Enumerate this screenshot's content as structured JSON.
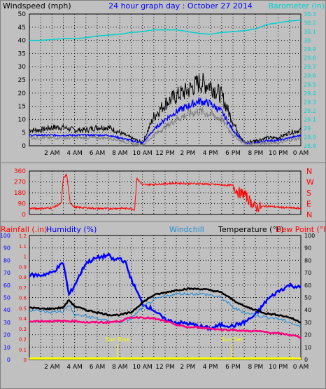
{
  "chart_data": [
    {
      "type": "line",
      "title": "24 hour graph day : October 27 2014",
      "ylabel": "Windspeed (mph)",
      "y2label": "Barometer (in)",
      "ylim": [
        0,
        50
      ],
      "y2lim": [
        28.8,
        30.3
      ],
      "yticks": [
        "0",
        "5",
        "10",
        "15",
        "20",
        "25",
        "30",
        "35",
        "40",
        "45",
        "50"
      ],
      "y2ticks": [
        "28.8",
        "28.9",
        "29",
        "29.1",
        "29.2",
        "29.3",
        "29.4",
        "29.5",
        "29.6",
        "29.7",
        "29.8",
        "29.9",
        "30",
        "30.1",
        "30.2",
        "30.3"
      ],
      "xticks": [
        "2 AM",
        "4 AM",
        "6 AM",
        "8 AM",
        "10 AM",
        "12 PM",
        "2 PM",
        "4 PM",
        "6 PM",
        "8 PM",
        "10 PM",
        "0 AM"
      ],
      "grid": true,
      "series": [
        {
          "name": "Wind gust",
          "color": "#000000",
          "x": [
            0,
            1,
            2,
            3,
            4,
            5,
            6,
            7,
            8,
            9,
            10,
            11,
            12,
            13,
            14,
            15,
            16,
            17,
            18,
            19,
            20,
            21,
            22,
            23,
            24
          ],
          "y": [
            6,
            6,
            7,
            7,
            6,
            6,
            7,
            7,
            5,
            3,
            1,
            11,
            16,
            19,
            21,
            24,
            23,
            19,
            9,
            1,
            2,
            3,
            3,
            5,
            6
          ]
        },
        {
          "name": "Wind speed",
          "color": "#0000ff",
          "x": [
            0,
            1,
            2,
            3,
            4,
            5,
            6,
            7,
            8,
            9,
            10,
            11,
            12,
            13,
            14,
            15,
            16,
            17,
            18,
            19,
            20,
            21,
            22,
            23,
            24
          ],
          "y": [
            4,
            4,
            4,
            4,
            4,
            4,
            4,
            4,
            3,
            2,
            1,
            6,
            10,
            13,
            15,
            17,
            16,
            13,
            6,
            1,
            1,
            2,
            2,
            3,
            4
          ]
        },
        {
          "name": "Wind avg",
          "color": "#808080",
          "x": [
            0,
            1,
            2,
            3,
            4,
            5,
            6,
            7,
            8,
            9,
            10,
            11,
            12,
            13,
            14,
            15,
            16,
            17,
            18,
            19,
            20,
            21,
            22,
            23,
            24
          ],
          "y": [
            3,
            3,
            3,
            3,
            3,
            3,
            3,
            3,
            2,
            1,
            0,
            4,
            7,
            10,
            12,
            13,
            12,
            10,
            4,
            1,
            1,
            1,
            1,
            2,
            3
          ]
        },
        {
          "name": "Barometer",
          "color": "#00d0d0",
          "x": [
            0,
            1,
            2,
            3,
            4,
            5,
            6,
            7,
            8,
            9,
            10,
            11,
            12,
            13,
            14,
            15,
            16,
            17,
            18,
            19,
            20,
            21,
            22,
            23,
            24
          ],
          "y2": [
            30,
            30,
            30.01,
            30.02,
            30.02,
            30.03,
            30.05,
            30.06,
            30.07,
            30.09,
            30.1,
            30.12,
            30.12,
            30.12,
            30.1,
            30.08,
            30.07,
            30.09,
            30.1,
            30.11,
            30.13,
            30.18,
            30.2,
            30.22,
            30.23
          ]
        }
      ]
    },
    {
      "type": "scatter",
      "ylim": [
        0,
        360
      ],
      "yticks": [
        "0",
        "90",
        "180",
        "270",
        "360"
      ],
      "y2ticks": [
        "N",
        "E",
        "S",
        "W",
        "N"
      ],
      "xticks": [
        "2 AM",
        "4 AM",
        "6 AM",
        "8 AM",
        "10 AM",
        "12 PM",
        "2 PM",
        "4 PM",
        "6 PM",
        "8 PM",
        "10 PM",
        "0 AM"
      ],
      "grid": true,
      "series": [
        {
          "name": "Wind direction",
          "color": "#ff0000",
          "x": [
            0,
            1,
            2,
            2.8,
            3,
            3.3,
            3.6,
            4,
            5,
            6,
            7,
            8,
            9,
            9.3,
            9.5,
            10,
            11,
            12,
            13,
            14,
            15,
            16,
            17,
            18,
            18.5,
            19,
            19.5,
            20,
            21,
            22,
            23,
            24
          ],
          "y": [
            50,
            50,
            55,
            90,
            300,
            330,
            100,
            60,
            55,
            50,
            48,
            52,
            50,
            40,
            300,
            245,
            250,
            255,
            260,
            255,
            255,
            250,
            245,
            240,
            180,
            170,
            110,
            60,
            70,
            60,
            55,
            50
          ]
        }
      ]
    },
    {
      "type": "line",
      "ylabel": "Rainfall (.in)",
      "ylabel2": "Humidity (%)",
      "windchill_label": "Windchill",
      "temp_label": "Temperature (°F)",
      "dewpoint_label": "Dew Point (°F)",
      "ylim_rain": [
        0,
        1.2
      ],
      "ylim_humidity": [
        0,
        100
      ],
      "ylim_temp": [
        0,
        100
      ],
      "yticks_rain": [
        "0",
        "0.1",
        "0.2",
        "0.3",
        "0.4",
        "0.5",
        "0.6",
        "0.7",
        "0.8",
        "0.9",
        "1",
        "1.1",
        "1.2"
      ],
      "yticks_humidity": [
        "0",
        "10",
        "20",
        "30",
        "40",
        "50",
        "60",
        "70",
        "80",
        "90",
        "100"
      ],
      "yticks_temp": [
        "0",
        "10",
        "20",
        "30",
        "40",
        "50",
        "60",
        "70",
        "80",
        "90",
        "100"
      ],
      "xticks": [
        "2 AM",
        "4 AM",
        "6 AM",
        "8 AM",
        "10 AM",
        "12 PM",
        "2 PM",
        "4 PM",
        "6 PM",
        "8 PM",
        "10 PM",
        "0 AM"
      ],
      "annotations": [
        {
          "text": "Sun Rise",
          "x": 7.8
        },
        {
          "text": "Sun Set",
          "x": 17.9
        }
      ],
      "grid": true,
      "series": [
        {
          "name": "Humidity",
          "color": "#0000ff",
          "axis": "humidity",
          "x": [
            0,
            1,
            2,
            3,
            3.5,
            4,
            5,
            6,
            7,
            7.5,
            8,
            8.5,
            9,
            10,
            11,
            12,
            13,
            14,
            15,
            16,
            17,
            18,
            19,
            20,
            21,
            22,
            23,
            24
          ],
          "y": [
            68,
            68,
            70,
            78,
            52,
            60,
            78,
            82,
            84,
            80,
            82,
            78,
            65,
            45,
            40,
            32,
            30,
            29,
            27,
            25,
            28,
            27,
            30,
            36,
            48,
            55,
            60,
            58
          ]
        },
        {
          "name": "Temperature",
          "color": "#000000",
          "axis": "temp",
          "x": [
            0,
            1,
            2,
            3,
            3.5,
            4,
            5,
            6,
            7,
            8,
            9,
            10,
            11,
            12,
            13,
            14,
            15,
            16,
            17,
            18,
            19,
            20,
            21,
            22,
            23,
            24
          ],
          "y": [
            42,
            41,
            41,
            42,
            48,
            43,
            40,
            38,
            36,
            36,
            38,
            46,
            52,
            54,
            56,
            57,
            57,
            56,
            54,
            48,
            43,
            40,
            37,
            36,
            34,
            30
          ]
        },
        {
          "name": "Windchill",
          "color": "#1e8ad6",
          "axis": "temp",
          "x": [
            0,
            1,
            2,
            3,
            3.5,
            4,
            5,
            6,
            7,
            8,
            9,
            10,
            11,
            12,
            13,
            14,
            15,
            16,
            17,
            18,
            19,
            20,
            21,
            22,
            23,
            24
          ],
          "y": [
            40,
            39,
            38,
            39,
            44,
            36,
            35,
            33,
            31,
            30,
            33,
            42,
            48,
            51,
            53,
            53,
            53,
            52,
            50,
            42,
            38,
            36,
            34,
            33,
            30,
            26
          ]
        },
        {
          "name": "Dew Point",
          "color": "#ff0080",
          "axis": "temp",
          "x": [
            0,
            1,
            2,
            3,
            4,
            5,
            6,
            7,
            8,
            9,
            10,
            11,
            12,
            13,
            14,
            15,
            16,
            17,
            18,
            19,
            20,
            21,
            22,
            23,
            24
          ],
          "y": [
            31,
            31,
            31,
            31,
            31,
            30,
            30,
            30,
            31,
            34,
            34,
            33,
            31,
            28,
            26,
            26,
            25,
            24,
            24,
            23,
            23,
            22,
            21,
            20,
            18
          ]
        },
        {
          "name": "Rainfall",
          "color": "#ffff00",
          "axis": "rain",
          "x": [
            0,
            24
          ],
          "y": [
            0,
            0
          ]
        }
      ]
    }
  ]
}
